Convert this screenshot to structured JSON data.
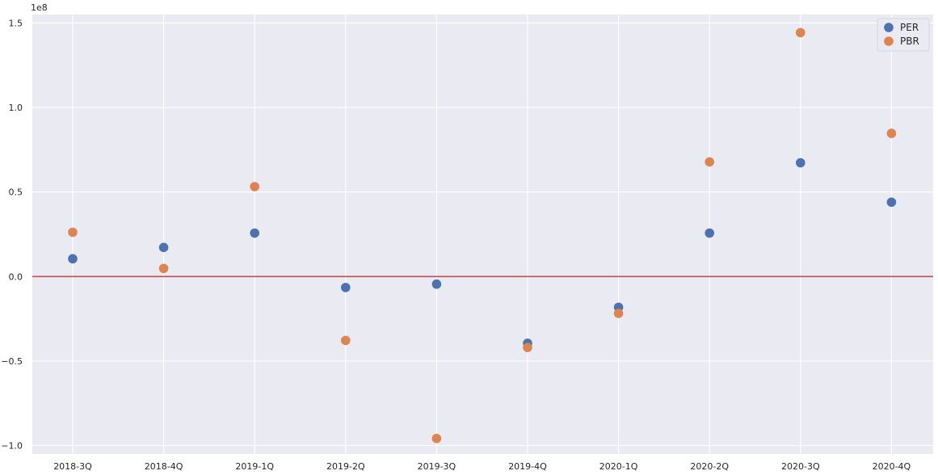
{
  "chart_data": {
    "type": "scatter",
    "categories": [
      "2018-3Q",
      "2018-4Q",
      "2019-1Q",
      "2019-2Q",
      "2019-3Q",
      "2019-4Q",
      "2020-1Q",
      "2020-2Q",
      "2020-3Q",
      "2020-4Q"
    ],
    "series": [
      {
        "name": "PER",
        "color": "#4c72b0",
        "values": [
          10500000,
          17200000,
          25700000,
          -6500000,
          -4500000,
          -39500000,
          -18200000,
          25700000,
          67300000,
          44000000
        ]
      },
      {
        "name": "PBR",
        "color": "#dd8452",
        "values": [
          26200000,
          4800000,
          53200000,
          -37800000,
          -95800000,
          -42000000,
          -21800000,
          67800000,
          144300000,
          84700000
        ]
      }
    ],
    "yticks": [
      -100000000,
      -50000000,
      0,
      50000000,
      100000000,
      150000000
    ],
    "ytick_labels": [
      "−1.0",
      "−0.5",
      "0.0",
      "0.5",
      "1.0",
      "1.5"
    ],
    "y_offset_label": "1e8",
    "ylim": [
      -105000000,
      155000000
    ],
    "reference_line": {
      "y": 0,
      "color": "#c44e52"
    },
    "grid": true,
    "legend": "top-right",
    "title": "",
    "xlabel": "",
    "ylabel": ""
  }
}
